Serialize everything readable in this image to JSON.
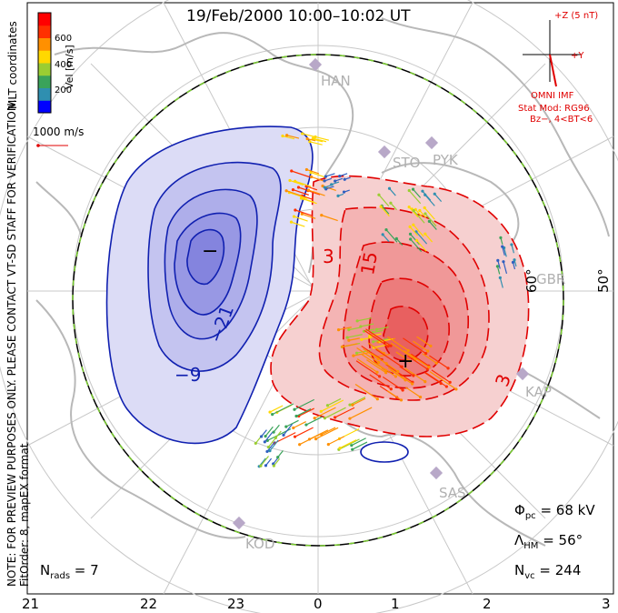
{
  "title": "19/Feb/2000 10:00–10:02 UT",
  "colorbar": {
    "label": "Vel [m/s]",
    "ticks": [
      "600",
      "400",
      "200"
    ],
    "colors": [
      "#0000ff",
      "#2f8fb0",
      "#3aa35a",
      "#9acd32",
      "#ffd800",
      "#ff9000",
      "#ff3000",
      "#ff0000"
    ]
  },
  "coords_label": "MLT coordinates",
  "scale_vector_label": "1000 m/s",
  "watermark": "NOTE: FOR PREVIEW PURPOSES ONLY. PLEASE CONTACT VT-SD STAFF FOR VERIFICATION.",
  "fit_info": "FitOrder: 8, mapEX format",
  "imf": {
    "bz_label": "+Z (5 nT)",
    "by_label": "+Y",
    "source": "OMNI IMF",
    "model": "Stat Mod: RG96",
    "model_params": "Bz−, 4<BT<6"
  },
  "stations": [
    "HAN",
    "STO",
    "PYK",
    "GBR",
    "KAP",
    "SAS",
    "KOD"
  ],
  "latitude_labels": [
    "60°",
    "50°"
  ],
  "contour_labels": [
    "−9",
    "−21",
    "3",
    "15",
    "3"
  ],
  "markers": {
    "min": "−",
    "max": "+"
  },
  "stats": {
    "phi_pc": "68 kV",
    "lambda_hm": "56°",
    "n_vc": "244",
    "n_rads": "7"
  },
  "mlt_axis": [
    "21",
    "22",
    "23",
    "0",
    "1",
    "2",
    "3"
  ],
  "colors": {
    "negative_cell": "#6a6aff",
    "positive_cell": "#ff3030",
    "contour_neg": "#1020b0",
    "contour_pos": "#e00000",
    "land": "#c8c8c8"
  }
}
